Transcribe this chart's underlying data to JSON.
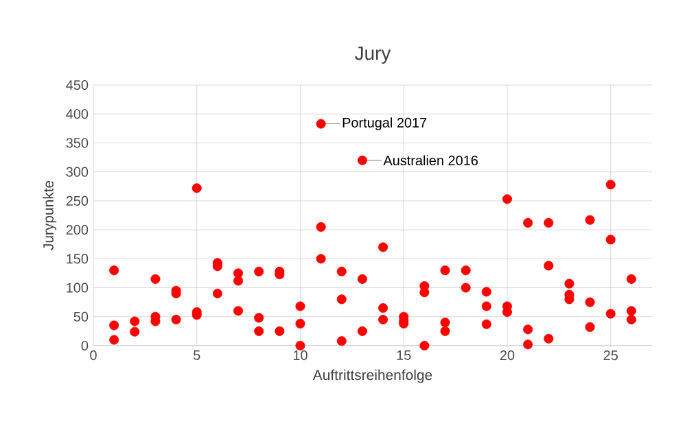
{
  "chart_data": {
    "type": "scatter",
    "title": "Jury",
    "xlabel": "Auftrittsreihenfolge",
    "ylabel": "Jurypunkte",
    "x": [
      1,
      1,
      1,
      2,
      2,
      3,
      3,
      3,
      4,
      4,
      4,
      5,
      5,
      5,
      6,
      6,
      6,
      7,
      7,
      7,
      8,
      8,
      8,
      9,
      9,
      9,
      10,
      10,
      10,
      11,
      11,
      11,
      12,
      12,
      12,
      13,
      13,
      13,
      14,
      14,
      14,
      15,
      15,
      15,
      16,
      16,
      16,
      17,
      17,
      17,
      18,
      18,
      19,
      19,
      19,
      20,
      20,
      20,
      21,
      21,
      21,
      22,
      22,
      22,
      23,
      23,
      23,
      24,
      24,
      24,
      25,
      25,
      25,
      26,
      26,
      26
    ],
    "values": [
      130,
      35,
      10,
      42,
      24,
      115,
      50,
      42,
      95,
      90,
      45,
      272,
      58,
      53,
      143,
      137,
      90,
      125,
      112,
      60,
      128,
      48,
      25,
      128,
      123,
      25,
      68,
      38,
      0,
      383,
      205,
      150,
      128,
      80,
      8,
      320,
      115,
      25,
      170,
      65,
      45,
      50,
      43,
      38,
      103,
      92,
      0,
      130,
      40,
      25,
      130,
      100,
      93,
      68,
      37,
      253,
      68,
      58,
      212,
      28,
      2,
      212,
      138,
      12,
      107,
      88,
      80,
      217,
      75,
      32,
      278,
      183,
      55,
      115,
      60,
      45
    ],
    "color": "#ff0000",
    "marker": "circle",
    "xlim": [
      0,
      27
    ],
    "xticks": [
      0,
      5,
      10,
      15,
      20,
      25
    ],
    "ylim": [
      0,
      450
    ],
    "yticks": [
      0,
      50,
      100,
      150,
      200,
      250,
      300,
      350,
      400,
      450
    ],
    "grid": true,
    "annotations": [
      {
        "text": "Portugal 2017",
        "x": 11,
        "y": 383
      },
      {
        "text": "Australien 2016",
        "x": 13,
        "y": 320
      }
    ]
  }
}
